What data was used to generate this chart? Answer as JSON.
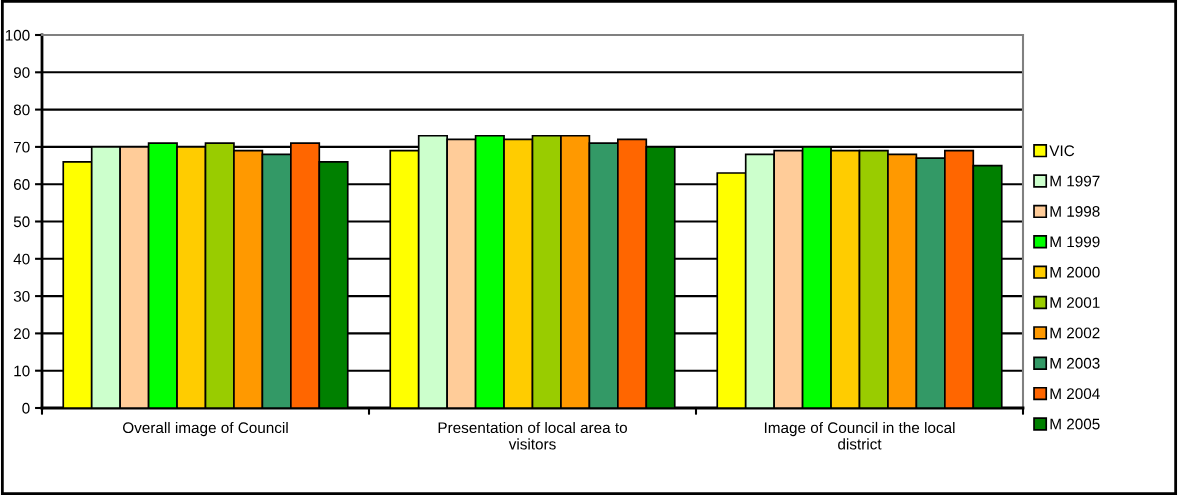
{
  "chart_data": {
    "type": "bar",
    "categories": [
      "Overall image of Council",
      "Presentation of local area to visitors",
      "Image of Council in the local district"
    ],
    "series": [
      {
        "name": "VIC",
        "color": "#ffff00",
        "values": [
          66,
          69,
          63
        ]
      },
      {
        "name": "M 1997",
        "color": "#ccffcc",
        "values": [
          70,
          73,
          68
        ]
      },
      {
        "name": "M 1998",
        "color": "#ffcc99",
        "values": [
          70,
          72,
          69
        ]
      },
      {
        "name": "M 1999",
        "color": "#00ff00",
        "values": [
          71,
          73,
          70
        ]
      },
      {
        "name": "M 2000",
        "color": "#ffcc00",
        "values": [
          70,
          72,
          69
        ]
      },
      {
        "name": "M 2001",
        "color": "#99cc00",
        "values": [
          71,
          73,
          69
        ]
      },
      {
        "name": "M 2002",
        "color": "#ff9900",
        "values": [
          69,
          73,
          68
        ]
      },
      {
        "name": "M 2003",
        "color": "#339966",
        "values": [
          68,
          71,
          67
        ]
      },
      {
        "name": "M 2004",
        "color": "#ff6600",
        "values": [
          71,
          72,
          69
        ]
      },
      {
        "name": "M 2005",
        "color": "#008000",
        "values": [
          66,
          70,
          65
        ]
      }
    ],
    "ylim": [
      0,
      100
    ],
    "yticks": [
      0,
      10,
      20,
      30,
      40,
      50,
      60,
      70,
      80,
      90,
      100
    ],
    "grid": "y",
    "legend": "right"
  }
}
